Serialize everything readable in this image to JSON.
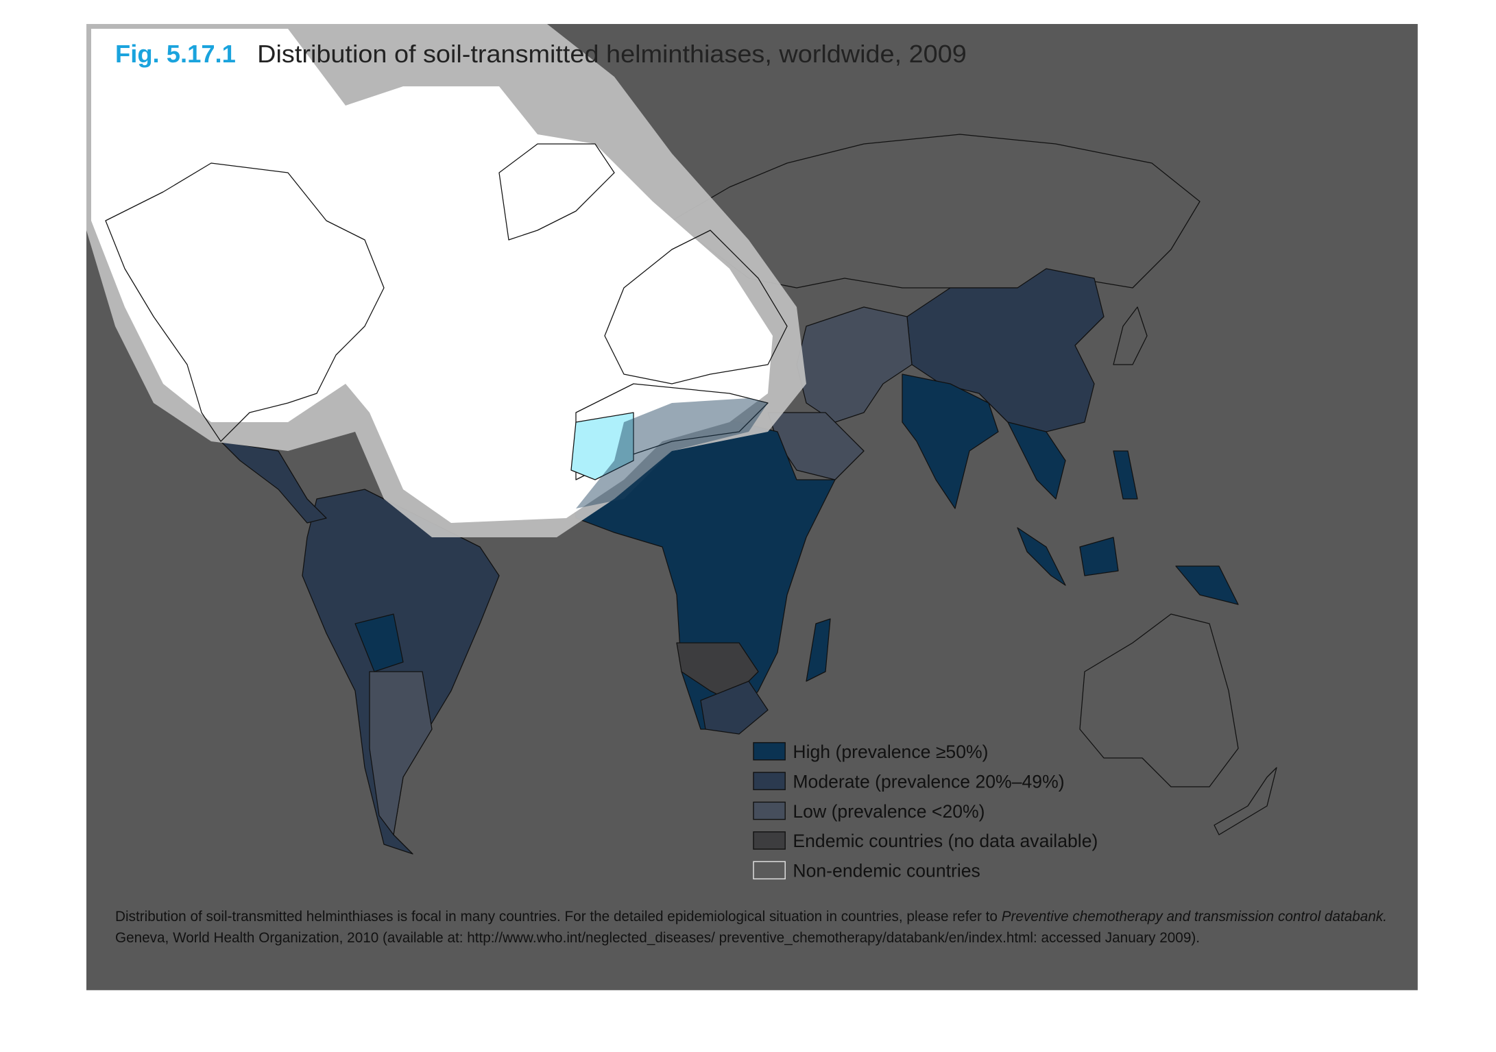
{
  "title": {
    "label": "Fig. 5.17.1",
    "text": "Distribution of soil-transmitted helminthiases, worldwide, 2009"
  },
  "legend": [
    {
      "label": "High (prevalence ≥50%)",
      "color": "#0b3352"
    },
    {
      "label": "Moderate (prevalence 20%–49%)",
      "color": "#2b3a4f"
    },
    {
      "label": "Low (prevalence <20%)",
      "color": "#464e5c"
    },
    {
      "label": "Endemic countries (no data available)",
      "color": "#3d3d3f"
    },
    {
      "label": "Non-endemic countries",
      "color": "#5a5a5a"
    }
  ],
  "footnote": {
    "line1": "Distribution of soil-transmitted helminthiases is focal in many countries. For the detailed epidemiological situation in countries, please refer to",
    "italic": "Preventive chemotherapy and transmission control databank.",
    "line2": "Geneva, World Health Organization, 2010 (available at: http://www.who.int/neglected_diseases/ preventive_chemotherapy/databank/en/index.html: accessed January 2009)."
  }
}
